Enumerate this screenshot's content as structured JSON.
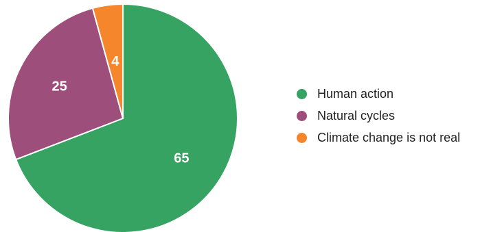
{
  "chart_data": {
    "type": "pie",
    "title": "",
    "slices": [
      {
        "name": "Human action",
        "value": 65,
        "color": "#36a362"
      },
      {
        "name": "Natural cycles",
        "value": 25,
        "color": "#9e4e7b"
      },
      {
        "name": "Climate change is not real",
        "value": 4,
        "color": "#f6862b"
      }
    ],
    "legend_position": "right",
    "data_labels": true
  }
}
